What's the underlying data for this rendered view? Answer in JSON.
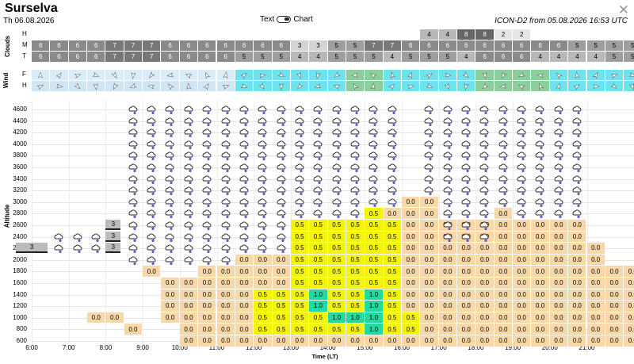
{
  "header": {
    "title": "Surselva",
    "date": "Th 06.08.2026",
    "toggle_left": "Text",
    "toggle_right": "Chart",
    "model": "ICON-D2 from 05.08.2026 16:53 UTC",
    "close": "✕"
  },
  "clouds": {
    "label": "Clouds",
    "rows": [
      "H",
      "M",
      "T"
    ],
    "H": [
      "",
      "",
      "",
      "",
      "",
      "",
      "",
      "",
      "",
      "",
      "",
      "",
      "",
      "",
      "",
      "",
      "",
      "",
      "",
      "",
      "",
      "4",
      "4",
      "8",
      "8",
      "2",
      "2",
      "",
      "",
      "",
      "",
      "",
      "",
      ""
    ],
    "M": [
      "6",
      "6",
      "6",
      "6",
      "7",
      "7",
      "7",
      "6",
      "6",
      "6",
      "6",
      "6",
      "6",
      "6",
      "3",
      "3",
      "5",
      "5",
      "7",
      "7",
      "6",
      "6",
      "6",
      "6",
      "6",
      "6",
      "6",
      "6",
      "6",
      "5",
      "5",
      "5",
      "5",
      "6"
    ],
    "T": [
      "6",
      "6",
      "6",
      "6",
      "7",
      "7",
      "7",
      "6",
      "6",
      "6",
      "6",
      "5",
      "5",
      "5",
      "4",
      "4",
      "5",
      "5",
      "5",
      "4",
      "5",
      "5",
      "5",
      "4",
      "6",
      "6",
      "6",
      "4",
      "4",
      "4",
      "4",
      "5",
      "5",
      "4"
    ]
  },
  "wind": {
    "label": "Wind",
    "rows": [
      "F",
      "H"
    ]
  },
  "chart": {
    "ylabel": "Altitude",
    "xlabel": "Time (LT)",
    "yticks": [
      "4600",
      "4400",
      "4200",
      "4000",
      "3800",
      "3600",
      "3400",
      "3200",
      "3000",
      "2800",
      "2600",
      "2400",
      "2200",
      "2000",
      "1800",
      "1600",
      "1400",
      "1200",
      "1000",
      "800",
      "600"
    ],
    "xticks": [
      "6:00",
      "7:00",
      "8:00",
      "9:00",
      "10:00",
      "11:00",
      "12:00",
      "13:00",
      "14:00",
      "15:00",
      "16:00",
      "17:00",
      "18:00",
      "19:00",
      "20:00",
      "21:00"
    ],
    "legend": {
      "low": "0.0",
      "mid": "0.5",
      "high": "1.0"
    },
    "cloud_base_label": "3"
  },
  "colors": {
    "tan": "#f8d8a8",
    "yellow": "#f4f40a",
    "green": "#22d9a0",
    "wind_light": "#cfe6f5",
    "wind_cyan": "#6fe3ec",
    "wind_green": "#8dcf9a"
  }
}
